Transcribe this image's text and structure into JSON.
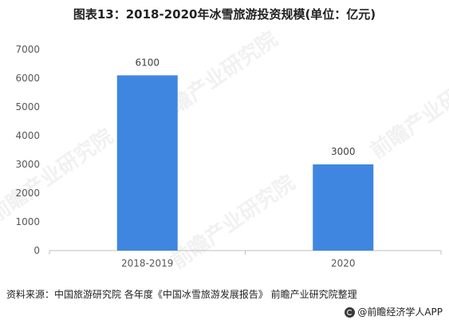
{
  "title": "图表13：2018-2020年冰雪旅游投资规模(单位：亿元)",
  "source": "资料来源：中国旅游研究院 各年度《中国冰雪旅游发展报告》 前瞻产业研究院整理",
  "brand": "@前瞻经济学人APP",
  "watermark": "前瞻产业研究院",
  "colors": {
    "bar": "#3f86e0",
    "axis": "#bfbfbf",
    "text": "#595959"
  },
  "chart_data": {
    "type": "bar",
    "title": "图表13：2018-2020年冰雪旅游投资规模(单位：亿元)",
    "categories": [
      "2018-2019",
      "2020"
    ],
    "values": [
      6100,
      3000
    ],
    "data_labels": [
      "6100",
      "3000"
    ],
    "y_ticks": [
      "0",
      "1000",
      "2000",
      "3000",
      "4000",
      "5000",
      "6000",
      "7000"
    ],
    "ylim": [
      0,
      7000
    ],
    "xlabel": "",
    "ylabel": "",
    "grid": false,
    "legend": "none"
  }
}
